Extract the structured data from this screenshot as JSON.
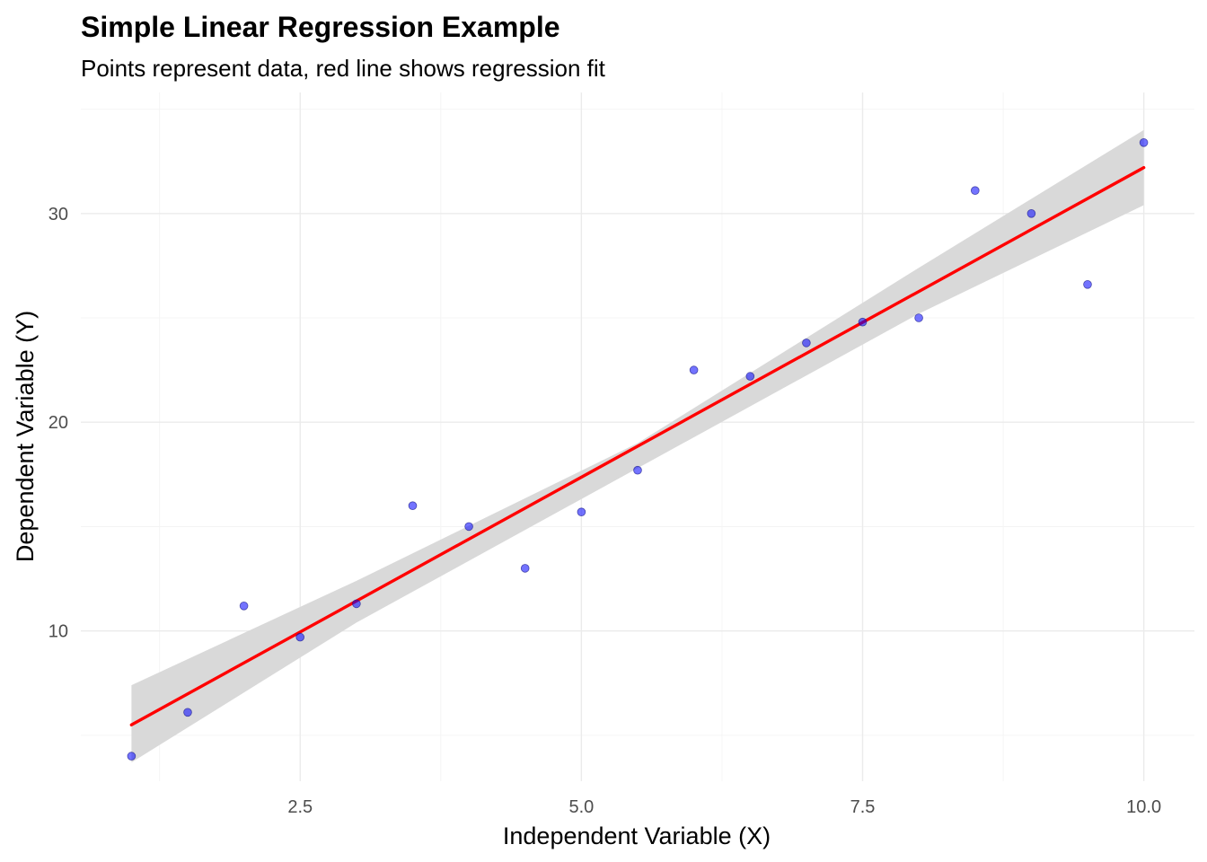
{
  "chart_data": {
    "type": "scatter",
    "title": "Simple Linear Regression Example",
    "subtitle": "Points represent data, red line shows regression fit",
    "xlabel": "Independent Variable (X)",
    "ylabel": "Dependent Variable (Y)",
    "xlim": [
      0.55,
      10.45
    ],
    "ylim": [
      2.8,
      35.8
    ],
    "x_ticks": [
      2.5,
      5.0,
      7.5,
      10.0
    ],
    "x_tick_labels": [
      "2.5",
      "5.0",
      "7.5",
      "10.0"
    ],
    "y_ticks": [
      10,
      20,
      30
    ],
    "y_tick_labels": [
      "10",
      "20",
      "30"
    ],
    "grid": true,
    "legend": "none",
    "series": [
      {
        "type": "scatter",
        "color": "#0000ff",
        "points": [
          {
            "x": 1.0,
            "y": 4.0
          },
          {
            "x": 1.5,
            "y": 6.1
          },
          {
            "x": 2.0,
            "y": 11.2
          },
          {
            "x": 2.5,
            "y": 9.7
          },
          {
            "x": 3.0,
            "y": 11.3
          },
          {
            "x": 3.5,
            "y": 16.0
          },
          {
            "x": 4.0,
            "y": 15.0
          },
          {
            "x": 4.5,
            "y": 13.0
          },
          {
            "x": 5.0,
            "y": 15.7
          },
          {
            "x": 5.5,
            "y": 17.7
          },
          {
            "x": 6.0,
            "y": 22.5
          },
          {
            "x": 6.5,
            "y": 22.2
          },
          {
            "x": 7.0,
            "y": 23.8
          },
          {
            "x": 7.5,
            "y": 24.8
          },
          {
            "x": 8.0,
            "y": 25.0
          },
          {
            "x": 8.5,
            "y": 31.1
          },
          {
            "x": 9.0,
            "y": 30.0
          },
          {
            "x": 9.5,
            "y": 26.6
          },
          {
            "x": 10.0,
            "y": 33.4
          }
        ]
      },
      {
        "type": "line",
        "color": "#ff0000",
        "fit": {
          "x": [
            1.0,
            10.0
          ],
          "y": [
            5.5,
            32.2
          ]
        },
        "confidence_band": {
          "color": "#d9d9d9",
          "x": [
            1.0,
            3.0,
            5.5,
            8.0,
            10.0
          ],
          "lower": [
            3.7,
            10.4,
            17.8,
            25.2,
            30.4
          ],
          "upper": [
            7.4,
            12.4,
            19.0,
            27.4,
            34.0
          ]
        }
      }
    ]
  }
}
